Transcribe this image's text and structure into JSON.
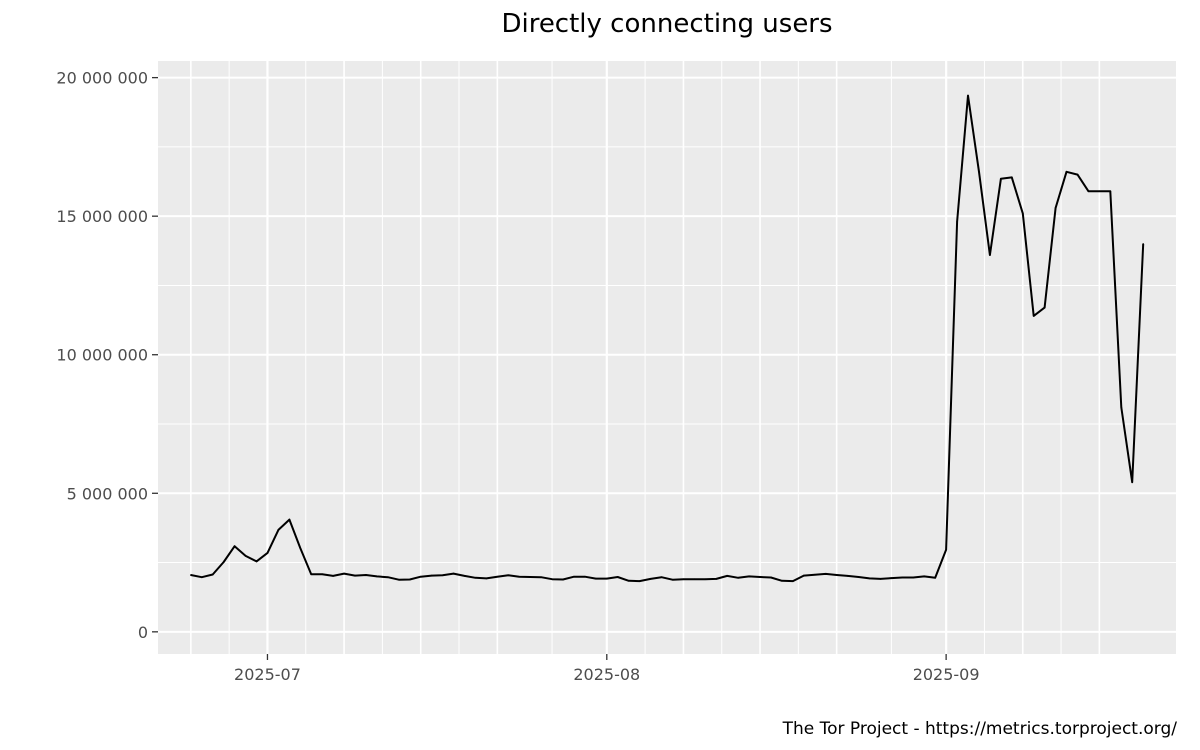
{
  "chart_data": {
    "type": "line",
    "title": "Directly connecting users",
    "caption": "The Tor Project - https://metrics.torproject.org/",
    "xlabel": "",
    "ylabel": "",
    "x_range": [
      "2025-06-21",
      "2025-09-22"
    ],
    "ylim": [
      -800000,
      20600000
    ],
    "y_ticks": [
      {
        "value": 0,
        "label": "0"
      },
      {
        "value": 5000000,
        "label": "5 000 000"
      },
      {
        "value": 10000000,
        "label": "10 000 000"
      },
      {
        "value": 15000000,
        "label": "15 000 000"
      },
      {
        "value": 20000000,
        "label": "20 000 000"
      }
    ],
    "x_ticks": [
      {
        "value": "2025-07-01",
        "label": "2025-07"
      },
      {
        "value": "2025-08-01",
        "label": "2025-08"
      },
      {
        "value": "2025-09-01",
        "label": "2025-09"
      }
    ],
    "grid": true,
    "background": "#ebebeb",
    "line_color": "#000000",
    "series": [
      {
        "x": [
          "2025-06-24",
          "2025-06-25",
          "2025-06-26",
          "2025-06-27",
          "2025-06-28",
          "2025-06-29",
          "2025-06-30",
          "2025-07-01",
          "2025-07-02",
          "2025-07-03",
          "2025-07-04",
          "2025-07-05",
          "2025-07-06",
          "2025-07-07",
          "2025-07-08",
          "2025-07-09",
          "2025-07-10",
          "2025-07-11",
          "2025-07-12",
          "2025-07-13",
          "2025-07-14",
          "2025-07-15",
          "2025-07-16",
          "2025-07-17",
          "2025-07-18",
          "2025-07-19",
          "2025-07-20",
          "2025-07-21",
          "2025-07-22",
          "2025-07-23",
          "2025-07-24",
          "2025-07-25",
          "2025-07-26",
          "2025-07-27",
          "2025-07-28",
          "2025-07-29",
          "2025-07-30",
          "2025-07-31",
          "2025-08-01",
          "2025-08-02",
          "2025-08-03",
          "2025-08-04",
          "2025-08-05",
          "2025-08-06",
          "2025-08-07",
          "2025-08-08",
          "2025-08-09",
          "2025-08-10",
          "2025-08-11",
          "2025-08-12",
          "2025-08-13",
          "2025-08-14",
          "2025-08-15",
          "2025-08-16",
          "2025-08-17",
          "2025-08-18",
          "2025-08-19",
          "2025-08-20",
          "2025-08-21",
          "2025-08-22",
          "2025-08-23",
          "2025-08-24",
          "2025-08-25",
          "2025-08-26",
          "2025-08-27",
          "2025-08-28",
          "2025-08-29",
          "2025-08-30",
          "2025-08-31",
          "2025-09-01",
          "2025-09-02",
          "2025-09-03",
          "2025-09-04",
          "2025-09-05",
          "2025-09-06",
          "2025-09-07",
          "2025-09-08",
          "2025-09-09",
          "2025-09-10",
          "2025-09-11",
          "2025-09-12",
          "2025-09-13",
          "2025-09-14",
          "2025-09-15",
          "2025-09-16",
          "2025-09-17",
          "2025-09-18",
          "2025-09-19"
        ],
        "values": [
          2050000,
          1970000,
          2070000,
          2520000,
          3090000,
          2740000,
          2540000,
          2850000,
          3680000,
          4050000,
          3020000,
          2080000,
          2080000,
          2020000,
          2100000,
          2030000,
          2050000,
          2000000,
          1970000,
          1880000,
          1890000,
          1990000,
          2030000,
          2040000,
          2100000,
          2020000,
          1950000,
          1930000,
          1990000,
          2040000,
          1990000,
          1980000,
          1970000,
          1900000,
          1890000,
          1990000,
          1990000,
          1920000,
          1920000,
          1980000,
          1840000,
          1830000,
          1910000,
          1970000,
          1880000,
          1900000,
          1900000,
          1900000,
          1910000,
          2020000,
          1950000,
          2000000,
          1980000,
          1960000,
          1840000,
          1830000,
          2030000,
          2060000,
          2090000,
          2050000,
          2020000,
          1980000,
          1930000,
          1910000,
          1940000,
          1960000,
          1960000,
          2000000,
          1950000,
          2960000,
          14800000,
          19350000,
          16600000,
          13600000,
          16350000,
          16400000,
          15100000,
          11400000,
          11700000,
          15300000,
          16600000,
          16500000,
          15900000,
          15900000,
          15900000,
          8100000,
          5400000,
          14000000
        ]
      }
    ]
  }
}
